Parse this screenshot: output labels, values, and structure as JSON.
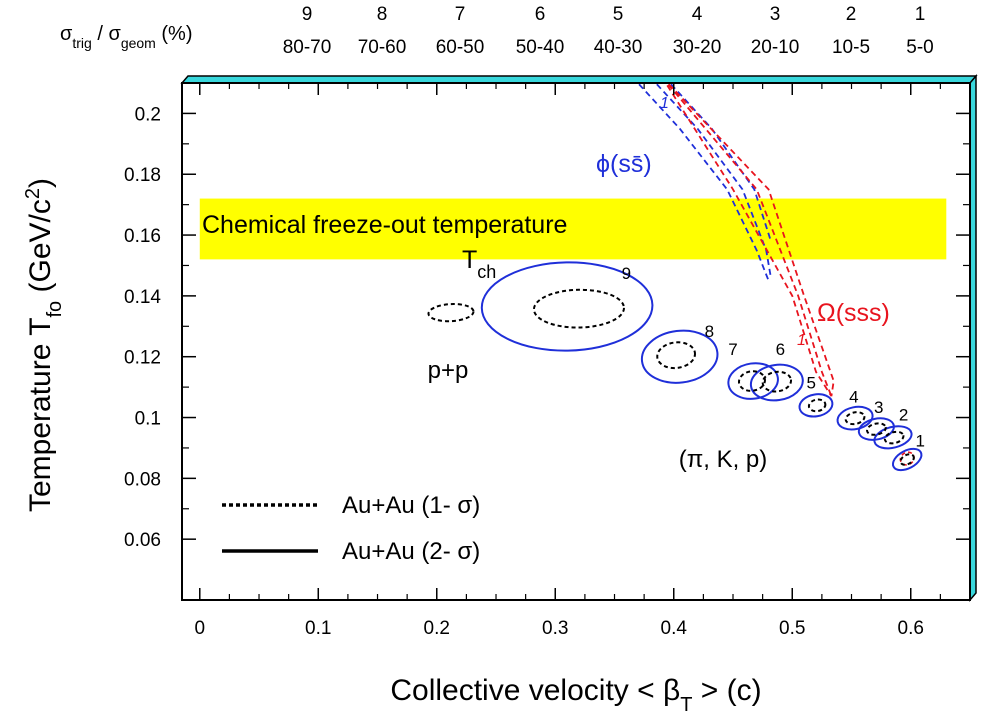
{
  "chart_data": {
    "type": "scatter",
    "xlabel": "Collective velocity < βT > (c)",
    "ylabel": "Temperature Tfo (GeV/c2)",
    "xlim": [
      -0.015,
      0.65
    ],
    "ylim": [
      0.04,
      0.21
    ],
    "x_ticks": [
      "0",
      "0.1",
      "0.2",
      "0.3",
      "0.4",
      "0.5",
      "0.6"
    ],
    "y_ticks": [
      "0.06",
      "0.08",
      "0.1",
      "0.12",
      "0.14",
      "0.16",
      "0.18",
      "0.2"
    ],
    "top_axis": {
      "label": "σtrig / σgeom (%)",
      "bins": [
        {
          "num": "9",
          "range": "80-70"
        },
        {
          "num": "8",
          "range": "70-60"
        },
        {
          "num": "7",
          "range": "60-50"
        },
        {
          "num": "6",
          "range": "50-40"
        },
        {
          "num": "5",
          "range": "40-30"
        },
        {
          "num": "4",
          "range": "30-20"
        },
        {
          "num": "3",
          "range": "20-10"
        },
        {
          "num": "2",
          "range": "10-5"
        },
        {
          "num": "1",
          "range": "5-0"
        }
      ]
    },
    "band": {
      "label": "Chemical freeze-out temperature",
      "sublabel": "Tch",
      "x": [
        0.0,
        0.63
      ],
      "y": [
        0.152,
        0.172
      ],
      "color": "#ffff00"
    },
    "series": [
      {
        "name": "(π, K, p)",
        "color": "#1f2fd9",
        "contours_2sigma": [
          {
            "label": "9",
            "cx": 0.31,
            "cy": 0.1365,
            "rx": 0.072,
            "ry": 0.0145,
            "angle": -1,
            "label_x": 0.36,
            "label_y": 0.1455
          },
          {
            "label": "8",
            "cx": 0.405,
            "cy": 0.12,
            "rx": 0.032,
            "ry": 0.0085,
            "angle": -7,
            "label_x": 0.43,
            "label_y": 0.1265
          },
          {
            "label": "7",
            "cx": 0.467,
            "cy": 0.112,
            "rx": 0.021,
            "ry": 0.0058,
            "angle": -8,
            "label_x": 0.45,
            "label_y": 0.1205
          },
          {
            "label": "6",
            "cx": 0.487,
            "cy": 0.1115,
            "rx": 0.022,
            "ry": 0.0058,
            "angle": -8,
            "label_x": 0.49,
            "label_y": 0.1205
          },
          {
            "label": "5",
            "cx": 0.52,
            "cy": 0.104,
            "rx": 0.014,
            "ry": 0.0036,
            "angle": -10,
            "label_x": 0.516,
            "label_y": 0.1095
          },
          {
            "label": "4",
            "cx": 0.553,
            "cy": 0.0998,
            "rx": 0.015,
            "ry": 0.0036,
            "angle": -12,
            "label_x": 0.552,
            "label_y": 0.105
          },
          {
            "label": "3",
            "cx": 0.571,
            "cy": 0.0962,
            "rx": 0.015,
            "ry": 0.0034,
            "angle": -12,
            "label_x": 0.573,
            "label_y": 0.1015
          },
          {
            "label": "2",
            "cx": 0.585,
            "cy": 0.0935,
            "rx": 0.016,
            "ry": 0.0034,
            "angle": -14,
            "label_x": 0.594,
            "label_y": 0.099
          },
          {
            "label": "1",
            "cx": 0.597,
            "cy": 0.0862,
            "rx": 0.013,
            "ry": 0.0029,
            "angle": -28,
            "label_x": 0.608,
            "label_y": 0.0905
          }
        ],
        "contours_1sigma": [
          {
            "cx": 0.32,
            "cy": 0.1358,
            "rx": 0.038,
            "ry": 0.0062,
            "angle": -1
          },
          {
            "cx": 0.402,
            "cy": 0.1205,
            "rx": 0.016,
            "ry": 0.0042,
            "angle": -7
          },
          {
            "cx": 0.466,
            "cy": 0.112,
            "rx": 0.011,
            "ry": 0.0032,
            "angle": -8
          },
          {
            "cx": 0.487,
            "cy": 0.1118,
            "rx": 0.012,
            "ry": 0.0032,
            "angle": -8
          },
          {
            "cx": 0.521,
            "cy": 0.104,
            "rx": 0.007,
            "ry": 0.0019,
            "angle": -10
          },
          {
            "cx": 0.553,
            "cy": 0.0998,
            "rx": 0.008,
            "ry": 0.0019,
            "angle": -12
          },
          {
            "cx": 0.571,
            "cy": 0.0962,
            "rx": 0.008,
            "ry": 0.0018,
            "angle": -12
          },
          {
            "cx": 0.586,
            "cy": 0.0934,
            "rx": 0.008,
            "ry": 0.0018,
            "angle": -14
          },
          {
            "cx": 0.597,
            "cy": 0.0862,
            "rx": 0.006,
            "ry": 0.0015,
            "angle": -28
          }
        ]
      },
      {
        "name": "p+p",
        "color": "#000000",
        "contours_1sigma": [
          {
            "cx": 0.212,
            "cy": 0.1345,
            "rx": 0.019,
            "ry": 0.0028,
            "angle": -3
          }
        ]
      },
      {
        "name": "ϕ(ss̄)",
        "color": "#1f2fd9",
        "label": "1",
        "dashed_paths": [
          [
            [
              0.365,
              0.212
            ],
            [
              0.405,
              0.195
            ],
            [
              0.445,
              0.175
            ],
            [
              0.47,
              0.155
            ],
            [
              0.48,
              0.145
            ]
          ],
          [
            [
              0.38,
              0.212
            ],
            [
              0.42,
              0.195
            ],
            [
              0.458,
              0.175
            ],
            [
              0.478,
              0.155
            ],
            [
              0.482,
              0.146
            ]
          ],
          [
            [
              0.392,
              0.212
            ],
            [
              0.432,
              0.195
            ],
            [
              0.468,
              0.175
            ],
            [
              0.482,
              0.158
            ]
          ]
        ]
      },
      {
        "name": "Ω(sss)",
        "color": "#e8141e",
        "label": "1",
        "dashed_paths": [
          [
            [
              0.39,
              0.212
            ],
            [
              0.45,
              0.175
            ],
            [
              0.5,
              0.14
            ],
            [
              0.52,
              0.115
            ],
            [
              0.533,
              0.107
            ]
          ],
          [
            [
              0.39,
              0.212
            ],
            [
              0.47,
              0.175
            ],
            [
              0.505,
              0.14
            ],
            [
              0.525,
              0.115
            ],
            [
              0.533,
              0.107
            ]
          ],
          [
            [
              0.39,
              0.212
            ],
            [
              0.48,
              0.175
            ],
            [
              0.51,
              0.14
            ],
            [
              0.535,
              0.112
            ],
            [
              0.533,
              0.107
            ]
          ]
        ],
        "small_contour": {
          "cx": 0.597,
          "cy": 0.0865,
          "rx": 0.006,
          "ry": 0.002,
          "angle": -30
        }
      }
    ],
    "legend": [
      {
        "style": "dotted",
        "label": "Au+Au (1- σ)"
      },
      {
        "style": "solid",
        "label": "Au+Au (2- σ)"
      }
    ],
    "legend_position": "bottom-left",
    "annotations": {
      "pp": "p+p",
      "pikp": "(π, K, p)",
      "phi": "ϕ(ss̄)",
      "omega": "Ω(sss)",
      "phi_num": "1",
      "omega_num": "1"
    }
  }
}
